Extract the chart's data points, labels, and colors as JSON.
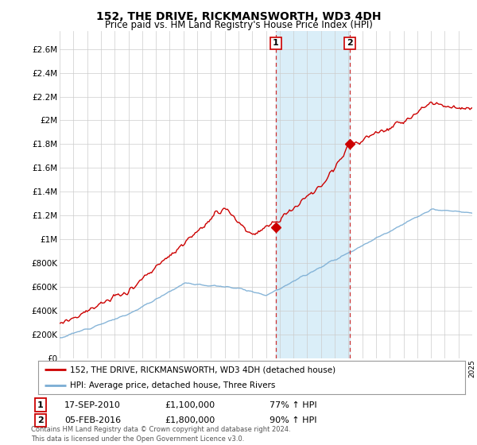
{
  "title": "152, THE DRIVE, RICKMANSWORTH, WD3 4DH",
  "subtitle": "Price paid vs. HM Land Registry's House Price Index (HPI)",
  "ylabel_ticks": [
    "£0",
    "£200K",
    "£400K",
    "£600K",
    "£800K",
    "£1M",
    "£1.2M",
    "£1.4M",
    "£1.6M",
    "£1.8M",
    "£2M",
    "£2.2M",
    "£2.4M",
    "£2.6M"
  ],
  "ytick_values": [
    0,
    200000,
    400000,
    600000,
    800000,
    1000000,
    1200000,
    1400000,
    1600000,
    1800000,
    2000000,
    2200000,
    2400000,
    2600000
  ],
  "ylim": [
    0,
    2750000
  ],
  "year_start": 1995,
  "year_end": 2025,
  "sale1_year": 2010.72,
  "sale1_price": 1100000,
  "sale2_year": 2016.09,
  "sale2_price": 1800000,
  "sale1_label": "1",
  "sale2_label": "2",
  "house_color": "#cc0000",
  "hpi_color": "#7aadd4",
  "shaded_color": "#daeef8",
  "vline_color": "#cc3333",
  "legend_house": "152, THE DRIVE, RICKMANSWORTH, WD3 4DH (detached house)",
  "legend_hpi": "HPI: Average price, detached house, Three Rivers",
  "annotation1_date": "17-SEP-2010",
  "annotation1_price": "£1,100,000",
  "annotation1_hpi": "77% ↑ HPI",
  "annotation2_date": "05-FEB-2016",
  "annotation2_price": "£1,800,000",
  "annotation2_hpi": "90% ↑ HPI",
  "footer": "Contains HM Land Registry data © Crown copyright and database right 2024.\nThis data is licensed under the Open Government Licence v3.0.",
  "background_color": "#ffffff",
  "grid_color": "#cccccc"
}
